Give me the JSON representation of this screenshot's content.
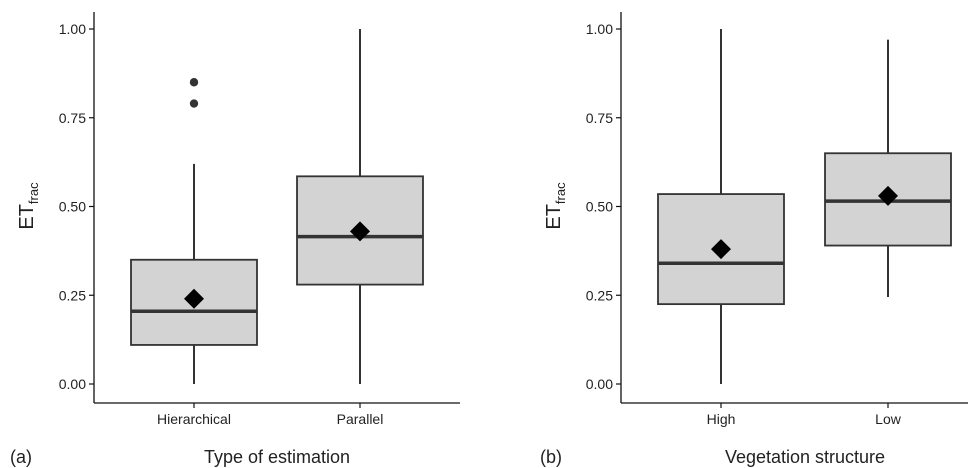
{
  "chart_data": [
    {
      "type": "box",
      "panel_label": "(a)",
      "xlabel": "Type of estimation",
      "ylabel_main": "ET",
      "ylabel_sub": "frac",
      "ylim": [
        0,
        1
      ],
      "yticks": [
        "0.00",
        "0.25",
        "0.50",
        "0.75",
        "1.00"
      ],
      "yticks_values": [
        0,
        0.25,
        0.5,
        0.75,
        1.0
      ],
      "categories": [
        "Hierarchical",
        "Parallel"
      ],
      "boxes": [
        {
          "category": "Hierarchical",
          "whisker_low": 0.0,
          "q1": 0.11,
          "median": 0.205,
          "q3": 0.35,
          "whisker_high": 0.62,
          "mean": 0.24,
          "outliers": [
            0.79,
            0.85
          ]
        },
        {
          "category": "Parallel",
          "whisker_low": 0.0,
          "q1": 0.28,
          "median": 0.415,
          "q3": 0.585,
          "whisker_high": 1.0,
          "mean": 0.43,
          "outliers": []
        }
      ]
    },
    {
      "type": "box",
      "panel_label": "(b)",
      "xlabel": "Vegetation structure",
      "ylabel_main": "ET",
      "ylabel_sub": "frac",
      "ylim": [
        0,
        1
      ],
      "yticks": [
        "0.00",
        "0.25",
        "0.50",
        "0.75",
        "1.00"
      ],
      "yticks_values": [
        0,
        0.25,
        0.5,
        0.75,
        1.0
      ],
      "categories": [
        "High",
        "Low"
      ],
      "boxes": [
        {
          "category": "High",
          "whisker_low": 0.0,
          "q1": 0.225,
          "median": 0.34,
          "q3": 0.535,
          "whisker_high": 1.0,
          "mean": 0.38,
          "outliers": []
        },
        {
          "category": "Low",
          "whisker_low": 0.245,
          "q1": 0.39,
          "median": 0.515,
          "q3": 0.65,
          "whisker_high": 0.97,
          "mean": 0.53,
          "outliers": []
        }
      ]
    }
  ],
  "style": {
    "box_fill": "#d3d3d3",
    "box_stroke": "#333333",
    "median_stroke": "#333333",
    "axis_color": "#111111",
    "mean_marker": "#000000",
    "outlier_color": "#333333"
  }
}
